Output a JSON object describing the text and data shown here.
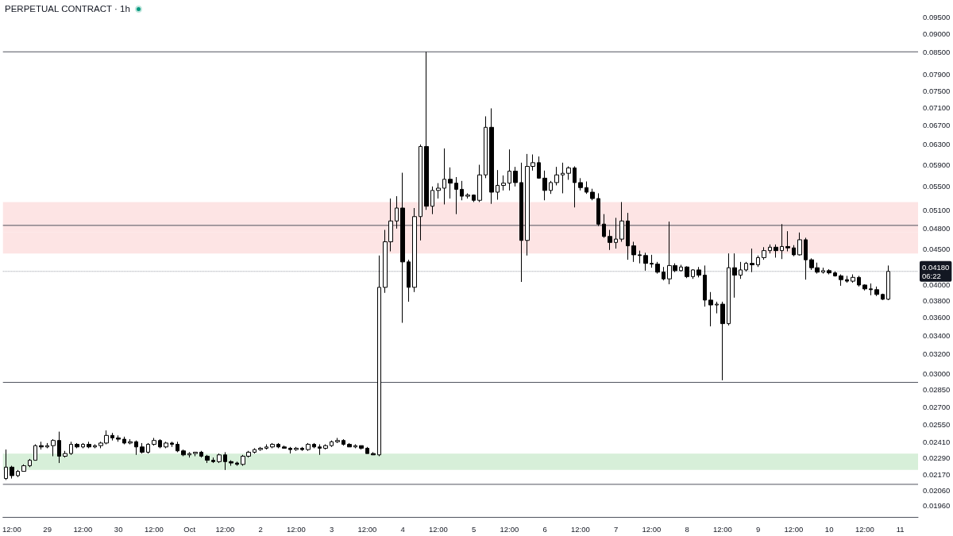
{
  "chart_data": {
    "type": "candlestick",
    "title": "PERPETUAL CONTRACT · 1h",
    "log": true,
    "grid": false,
    "xlim": [
      "--09-28T09:00",
      "--10-11T06:00"
    ],
    "xticks": [
      {
        "value": "--09-28T12:00",
        "label": "12:00"
      },
      {
        "value": "--09-29",
        "label": "29"
      },
      {
        "value": "--09-29T12:00",
        "label": "12:00"
      },
      {
        "value": "--09-30",
        "label": "30"
      },
      {
        "value": "--09-30T12:00",
        "label": "12:00"
      },
      {
        "value": "--10-01",
        "label": "Oct"
      },
      {
        "value": "--10-01T12:00",
        "label": "12:00"
      },
      {
        "value": "--10-02",
        "label": "2"
      },
      {
        "value": "--10-02T12:00",
        "label": "12:00"
      },
      {
        "value": "--10-03",
        "label": "3"
      },
      {
        "value": "--10-03T12:00",
        "label": "12:00"
      },
      {
        "value": "--10-04",
        "label": "4"
      },
      {
        "value": "--10-04T12:00",
        "label": "12:00"
      },
      {
        "value": "--10-05",
        "label": "5"
      },
      {
        "value": "--10-05T12:00",
        "label": "12:00"
      },
      {
        "value": "--10-06",
        "label": "6"
      },
      {
        "value": "--10-06T12:00",
        "label": "12:00"
      },
      {
        "value": "--10-07",
        "label": "7"
      },
      {
        "value": "--10-07T12:00",
        "label": "12:00"
      },
      {
        "value": "--10-08",
        "label": "8"
      },
      {
        "value": "--10-08T12:00",
        "label": "12:00"
      },
      {
        "value": "--10-09",
        "label": "9"
      },
      {
        "value": "--10-09T12:00",
        "label": "12:00"
      },
      {
        "value": "--10-10",
        "label": "10"
      },
      {
        "value": "--10-10T12:00",
        "label": "12:00"
      },
      {
        "value": "--10-11",
        "label": "11"
      }
    ],
    "ylim": [
      0.0189,
      0.1005
    ],
    "yticks": [
      {
        "value": 0.095,
        "label": "0.09500"
      },
      {
        "value": 0.09,
        "label": "0.09000"
      },
      {
        "value": 0.085,
        "label": "0.08500"
      },
      {
        "value": 0.079,
        "label": "0.07900"
      },
      {
        "value": 0.075,
        "label": "0.07500"
      },
      {
        "value": 0.071,
        "label": "0.07100"
      },
      {
        "value": 0.067,
        "label": "0.06700"
      },
      {
        "value": 0.063,
        "label": "0.06300"
      },
      {
        "value": 0.059,
        "label": "0.05900"
      },
      {
        "value": 0.055,
        "label": "0.05500"
      },
      {
        "value": 0.051,
        "label": "0.05100"
      },
      {
        "value": 0.048,
        "label": "0.04800"
      },
      {
        "value": 0.045,
        "label": "0.04500"
      },
      {
        "value": 0.04,
        "label": "0.04000"
      },
      {
        "value": 0.038,
        "label": "0.03800"
      },
      {
        "value": 0.036,
        "label": "0.03600"
      },
      {
        "value": 0.034,
        "label": "0.03400"
      },
      {
        "value": 0.032,
        "label": "0.03200"
      },
      {
        "value": 0.03,
        "label": "0.03000"
      },
      {
        "value": 0.0285,
        "label": "0.02850"
      },
      {
        "value": 0.027,
        "label": "0.02700"
      },
      {
        "value": 0.0255,
        "label": "0.02550"
      },
      {
        "value": 0.0241,
        "label": "0.02410"
      },
      {
        "value": 0.0229,
        "label": "0.02290"
      },
      {
        "value": 0.0217,
        "label": "0.02170"
      },
      {
        "value": 0.0206,
        "label": "0.02060"
      },
      {
        "value": 0.0196,
        "label": "0.01960"
      }
    ],
    "bands": [
      {
        "axis": "y",
        "from": 0.022,
        "to": 0.0232,
        "color": "#d7efd9"
      },
      {
        "axis": "y",
        "from": 0.0474,
        "to": 0.0523,
        "color": "#fde4e4"
      },
      {
        "axis": "y",
        "from": 0.0443,
        "to": 0.0474,
        "color": "#fde4e4"
      }
    ],
    "ref_lines": [
      {
        "axis": "y",
        "value": 0.085,
        "color": "#50535e"
      },
      {
        "axis": "y",
        "value": 0.0485,
        "color": "#50535e"
      },
      {
        "axis": "y",
        "value": 0.0292,
        "color": "#50535e"
      },
      {
        "axis": "y",
        "value": 0.021,
        "color": "#50535e"
      },
      {
        "axis": "y",
        "value": 0.0418,
        "label": "0.04180\n06:22",
        "color": "#9598a1",
        "line_style": "dotted"
      }
    ],
    "x": [
      "--09-28T10:00",
      "--09-28T12:00",
      "--09-28T14:00",
      "--09-28T16:00",
      "--09-28T18:00",
      "--09-28T20:00",
      "--09-28T22:00",
      "--09-29T00:00",
      "--09-29T02:00",
      "--09-29T04:00",
      "--09-29T06:00",
      "--09-29T08:00",
      "--09-29T10:00",
      "--09-29T12:00",
      "--09-29T14:00",
      "--09-29T16:00",
      "--09-29T18:00",
      "--09-29T20:00",
      "--09-29T22:00",
      "--09-30T00:00",
      "--09-30T02:00",
      "--09-30T04:00",
      "--09-30T06:00",
      "--09-30T08:00",
      "--09-30T10:00",
      "--09-30T12:00",
      "--09-30T14:00",
      "--09-30T16:00",
      "--09-30T18:00",
      "--09-30T20:00",
      "--09-30T22:00",
      "--10-01T00:00",
      "--10-01T02:00",
      "--10-01T04:00",
      "--10-01T06:00",
      "--10-01T08:00",
      "--10-01T10:00",
      "--10-01T12:00",
      "--10-01T14:00",
      "--10-01T16:00",
      "--10-01T18:00",
      "--10-01T20:00",
      "--10-01T22:00",
      "--10-02T00:00",
      "--10-02T02:00",
      "--10-02T04:00",
      "--10-02T06:00",
      "--10-02T08:00",
      "--10-02T10:00",
      "--10-02T12:00",
      "--10-02T14:00",
      "--10-02T16:00",
      "--10-02T18:00",
      "--10-02T20:00",
      "--10-02T22:00",
      "--10-03T00:00",
      "--10-03T02:00",
      "--10-03T04:00",
      "--10-03T06:00",
      "--10-03T08:00",
      "--10-03T10:00",
      "--10-03T12:00",
      "--10-03T14:00",
      "--10-03T16:00",
      "--10-03T18:00",
      "--10-03T20:00",
      "--10-03T22:00",
      "--10-04T00:00",
      "--10-04T02:00",
      "--10-04T04:00",
      "--10-04T06:00",
      "--10-04T08:00",
      "--10-04T10:00",
      "--10-04T12:00",
      "--10-04T14:00",
      "--10-04T16:00",
      "--10-04T18:00",
      "--10-04T20:00",
      "--10-04T22:00",
      "--10-05T00:00",
      "--10-05T02:00",
      "--10-05T04:00",
      "--10-05T06:00",
      "--10-05T08:00",
      "--10-05T10:00",
      "--10-05T12:00",
      "--10-05T14:00",
      "--10-05T16:00",
      "--10-05T18:00",
      "--10-05T20:00",
      "--10-05T22:00",
      "--10-06T00:00",
      "--10-06T02:00",
      "--10-06T04:00",
      "--10-06T06:00",
      "--10-06T08:00",
      "--10-06T10:00",
      "--10-06T12:00",
      "--10-06T14:00",
      "--10-06T16:00",
      "--10-06T18:00",
      "--10-06T20:00",
      "--10-06T22:00",
      "--10-07T00:00",
      "--10-07T02:00",
      "--10-07T04:00",
      "--10-07T06:00",
      "--10-07T08:00",
      "--10-07T10:00",
      "--10-07T12:00",
      "--10-07T14:00",
      "--10-07T16:00",
      "--10-07T18:00",
      "--10-07T20:00",
      "--10-07T22:00",
      "--10-08T00:00",
      "--10-08T02:00",
      "--10-08T04:00",
      "--10-08T06:00",
      "--10-08T08:00",
      "--10-08T10:00",
      "--10-08T12:00",
      "--10-08T14:00",
      "--10-08T16:00",
      "--10-08T18:00",
      "--10-08T20:00",
      "--10-08T22:00",
      "--10-09T00:00",
      "--10-09T02:00",
      "--10-09T04:00",
      "--10-09T06:00",
      "--10-09T08:00",
      "--10-09T10:00",
      "--10-09T12:00",
      "--10-09T14:00",
      "--10-09T16:00",
      "--10-09T18:00",
      "--10-09T20:00",
      "--10-09T22:00",
      "--10-10T00:00",
      "--10-10T02:00",
      "--10-10T04:00",
      "--10-10T06:00",
      "--10-10T08:00",
      "--10-10T10:00",
      "--10-10T12:00",
      "--10-10T14:00",
      "--10-10T16:00",
      "--10-10T18:00",
      "--10-10T20:00"
    ],
    "series": [
      {
        "color": "#000000",
        "ohlc": [
          [
            0.0214,
            0.0235,
            0.0213,
            0.0222
          ],
          [
            0.0222,
            0.0223,
            0.0214,
            0.0216
          ],
          [
            0.0216,
            0.022,
            0.0215,
            0.0219
          ],
          [
            0.0219,
            0.0224,
            0.0219,
            0.0223
          ],
          [
            0.0223,
            0.0228,
            0.0222,
            0.0227
          ],
          [
            0.0227,
            0.0239,
            0.0227,
            0.0238
          ],
          [
            0.0238,
            0.0241,
            0.0235,
            0.0237
          ],
          [
            0.0237,
            0.024,
            0.0236,
            0.0238
          ],
          [
            0.0238,
            0.0243,
            0.023,
            0.0242
          ],
          [
            0.0242,
            0.0249,
            0.0225,
            0.023
          ],
          [
            0.023,
            0.0234,
            0.0229,
            0.0232
          ],
          [
            0.0232,
            0.0241,
            0.0231,
            0.0239
          ],
          [
            0.0239,
            0.024,
            0.0236,
            0.0237
          ],
          [
            0.0237,
            0.024,
            0.0236,
            0.0239
          ],
          [
            0.0239,
            0.0241,
            0.0236,
            0.0237
          ],
          [
            0.0237,
            0.0239,
            0.0236,
            0.0238
          ],
          [
            0.0238,
            0.0241,
            0.0236,
            0.024
          ],
          [
            0.024,
            0.025,
            0.0239,
            0.0246
          ],
          [
            0.0246,
            0.0248,
            0.0242,
            0.0244
          ],
          [
            0.0244,
            0.0246,
            0.0241,
            0.0243
          ],
          [
            0.0243,
            0.0245,
            0.0239,
            0.024
          ],
          [
            0.024,
            0.0243,
            0.0239,
            0.0241
          ],
          [
            0.0241,
            0.0242,
            0.0231,
            0.0237
          ],
          [
            0.0237,
            0.024,
            0.0232,
            0.0233
          ],
          [
            0.0233,
            0.024,
            0.0232,
            0.0239
          ],
          [
            0.0239,
            0.0244,
            0.0238,
            0.0242
          ],
          [
            0.0242,
            0.0243,
            0.0236,
            0.0237
          ],
          [
            0.0237,
            0.0241,
            0.0236,
            0.024
          ],
          [
            0.024,
            0.0241,
            0.0237,
            0.0239
          ],
          [
            0.0239,
            0.0241,
            0.0233,
            0.0234
          ],
          [
            0.0234,
            0.0235,
            0.023,
            0.0231
          ],
          [
            0.0231,
            0.0233,
            0.0229,
            0.0232
          ],
          [
            0.0232,
            0.0233,
            0.023,
            0.0233
          ],
          [
            0.0233,
            0.0234,
            0.0229,
            0.023
          ],
          [
            0.023,
            0.0231,
            0.0225,
            0.0227
          ],
          [
            0.0227,
            0.0229,
            0.0225,
            0.0226
          ],
          [
            0.0226,
            0.0232,
            0.0225,
            0.0231
          ],
          [
            0.0231,
            0.0233,
            0.022,
            0.0226
          ],
          [
            0.0226,
            0.0227,
            0.0223,
            0.0225
          ],
          [
            0.0225,
            0.0226,
            0.0223,
            0.0224
          ],
          [
            0.0224,
            0.0231,
            0.0223,
            0.023
          ],
          [
            0.023,
            0.0234,
            0.0229,
            0.0233
          ],
          [
            0.0233,
            0.0236,
            0.0232,
            0.0235
          ],
          [
            0.0235,
            0.0237,
            0.0234,
            0.0236
          ],
          [
            0.0236,
            0.0239,
            0.0235,
            0.0237
          ],
          [
            0.0237,
            0.024,
            0.0236,
            0.0239
          ],
          [
            0.0239,
            0.024,
            0.0236,
            0.0237
          ],
          [
            0.0237,
            0.0238,
            0.0236,
            0.0236
          ],
          [
            0.0236,
            0.0237,
            0.0232,
            0.0235
          ],
          [
            0.0235,
            0.0237,
            0.0234,
            0.0236
          ],
          [
            0.0236,
            0.0237,
            0.0234,
            0.0235
          ],
          [
            0.0235,
            0.024,
            0.0234,
            0.0239
          ],
          [
            0.0239,
            0.024,
            0.0236,
            0.0237
          ],
          [
            0.0237,
            0.0239,
            0.0231,
            0.0236
          ],
          [
            0.0236,
            0.0239,
            0.0235,
            0.0238
          ],
          [
            0.0238,
            0.0242,
            0.0237,
            0.0241
          ],
          [
            0.0241,
            0.0244,
            0.024,
            0.0242
          ],
          [
            0.0242,
            0.0243,
            0.0238,
            0.0239
          ],
          [
            0.0239,
            0.024,
            0.0237,
            0.0237
          ],
          [
            0.0237,
            0.0239,
            0.0236,
            0.0238
          ],
          [
            0.0238,
            0.0238,
            0.0235,
            0.0236
          ],
          [
            0.0236,
            0.0237,
            0.0232,
            0.0232
          ],
          [
            0.0232,
            0.0233,
            0.0231,
            0.0231
          ],
          [
            0.0231,
            0.044,
            0.023,
            0.0397
          ],
          [
            0.0397,
            0.0478,
            0.039,
            0.046
          ],
          [
            0.046,
            0.0529,
            0.0446,
            0.0492
          ],
          [
            0.0492,
            0.0533,
            0.048,
            0.0513
          ],
          [
            0.0513,
            0.0575,
            0.0354,
            0.0431
          ],
          [
            0.0431,
            0.0434,
            0.0379,
            0.0397
          ],
          [
            0.0397,
            0.0513,
            0.0391,
            0.0499
          ],
          [
            0.0499,
            0.063,
            0.0462,
            0.0626
          ],
          [
            0.0626,
            0.085,
            0.051,
            0.0516
          ],
          [
            0.0516,
            0.055,
            0.0503,
            0.0543
          ],
          [
            0.0543,
            0.0556,
            0.0529,
            0.0547
          ],
          [
            0.0547,
            0.0622,
            0.0519,
            0.0563
          ],
          [
            0.0563,
            0.0585,
            0.0529,
            0.0556
          ],
          [
            0.0556,
            0.0567,
            0.0503,
            0.0545
          ],
          [
            0.0545,
            0.056,
            0.0526,
            0.0533
          ],
          [
            0.0533,
            0.0538,
            0.0529,
            0.0535
          ],
          [
            0.0535,
            0.0536,
            0.0523,
            0.0526
          ],
          [
            0.0526,
            0.059,
            0.0523,
            0.0571
          ],
          [
            0.0571,
            0.069,
            0.0565,
            0.0666
          ],
          [
            0.0666,
            0.0708,
            0.052,
            0.054
          ],
          [
            0.054,
            0.058,
            0.0527,
            0.0552
          ],
          [
            0.0552,
            0.057,
            0.0543,
            0.0556
          ],
          [
            0.0556,
            0.062,
            0.0543,
            0.0578
          ],
          [
            0.0578,
            0.0586,
            0.055,
            0.0557
          ],
          [
            0.0557,
            0.0594,
            0.0404,
            0.0462
          ],
          [
            0.0462,
            0.0611,
            0.044,
            0.0587
          ],
          [
            0.0587,
            0.061,
            0.0579,
            0.0594
          ],
          [
            0.0594,
            0.0606,
            0.0564,
            0.0565
          ],
          [
            0.0565,
            0.0579,
            0.0526,
            0.0543
          ],
          [
            0.0543,
            0.056,
            0.0537,
            0.0557
          ],
          [
            0.0557,
            0.0586,
            0.0552,
            0.0571
          ],
          [
            0.0571,
            0.0594,
            0.0538,
            0.0574
          ],
          [
            0.0574,
            0.0587,
            0.0562,
            0.0584
          ],
          [
            0.0584,
            0.0587,
            0.0514,
            0.0557
          ],
          [
            0.0557,
            0.0565,
            0.0543,
            0.0548
          ],
          [
            0.0548,
            0.0559,
            0.0537,
            0.054
          ],
          [
            0.054,
            0.0546,
            0.0526,
            0.0529
          ],
          [
            0.0529,
            0.0538,
            0.0484,
            0.0487
          ],
          [
            0.0487,
            0.0503,
            0.0466,
            0.0468
          ],
          [
            0.0468,
            0.0478,
            0.0448,
            0.0459
          ],
          [
            0.0459,
            0.0497,
            0.045,
            0.0464
          ],
          [
            0.0464,
            0.0523,
            0.046,
            0.0492
          ],
          [
            0.0492,
            0.0505,
            0.0434,
            0.0454
          ],
          [
            0.0454,
            0.046,
            0.0431,
            0.0441
          ],
          [
            0.0441,
            0.0447,
            0.0429,
            0.044
          ],
          [
            0.044,
            0.0444,
            0.0419,
            0.0429
          ],
          [
            0.0429,
            0.0441,
            0.0423,
            0.0428
          ],
          [
            0.0428,
            0.0431,
            0.0415,
            0.0417
          ],
          [
            0.0417,
            0.0424,
            0.0406,
            0.0408
          ],
          [
            0.0408,
            0.0491,
            0.0401,
            0.0426
          ],
          [
            0.0426,
            0.0429,
            0.0417,
            0.0419
          ],
          [
            0.0419,
            0.0427,
            0.0418,
            0.0424
          ],
          [
            0.0424,
            0.0425,
            0.0409,
            0.0411
          ],
          [
            0.0411,
            0.0421,
            0.0408,
            0.042
          ],
          [
            0.042,
            0.0424,
            0.041,
            0.0413
          ],
          [
            0.0413,
            0.0426,
            0.0373,
            0.0381
          ],
          [
            0.0381,
            0.0391,
            0.035,
            0.0375
          ],
          [
            0.0375,
            0.0379,
            0.0365,
            0.0376
          ],
          [
            0.0376,
            0.0379,
            0.0294,
            0.0353
          ],
          [
            0.0353,
            0.0443,
            0.0351,
            0.0423
          ],
          [
            0.0423,
            0.0443,
            0.0384,
            0.0413
          ],
          [
            0.0413,
            0.0431,
            0.0408,
            0.042
          ],
          [
            0.042,
            0.0431,
            0.0418,
            0.0429
          ],
          [
            0.0429,
            0.045,
            0.0417,
            0.0427
          ],
          [
            0.0427,
            0.044,
            0.0424,
            0.0437
          ],
          [
            0.0437,
            0.0452,
            0.0434,
            0.0447
          ],
          [
            0.0447,
            0.0456,
            0.0443,
            0.0452
          ],
          [
            0.0452,
            0.0456,
            0.0437,
            0.0447
          ],
          [
            0.0447,
            0.0487,
            0.0435,
            0.0453
          ],
          [
            0.0453,
            0.0476,
            0.0446,
            0.0451
          ],
          [
            0.0451,
            0.0455,
            0.0439,
            0.0441
          ],
          [
            0.0441,
            0.0474,
            0.044,
            0.0463
          ],
          [
            0.0463,
            0.0466,
            0.0407,
            0.0434
          ],
          [
            0.0434,
            0.0436,
            0.042,
            0.0423
          ],
          [
            0.0423,
            0.043,
            0.0415,
            0.0417
          ],
          [
            0.0417,
            0.0423,
            0.0415,
            0.0419
          ],
          [
            0.0419,
            0.0421,
            0.0414,
            0.0416
          ],
          [
            0.0416,
            0.0418,
            0.0411,
            0.0412
          ],
          [
            0.0412,
            0.0414,
            0.0399,
            0.0407
          ],
          [
            0.0407,
            0.0412,
            0.0403,
            0.0405
          ],
          [
            0.0405,
            0.0414,
            0.0403,
            0.041
          ],
          [
            0.041,
            0.0412,
            0.0398,
            0.04
          ],
          [
            0.04,
            0.0401,
            0.0393,
            0.0395
          ],
          [
            0.0395,
            0.0402,
            0.0387,
            0.0394
          ],
          [
            0.0394,
            0.0398,
            0.0386,
            0.0388
          ],
          [
            0.0388,
            0.0389,
            0.0381,
            0.0382
          ],
          [
            0.0382,
            0.0426,
            0.0381,
            0.0418
          ]
        ]
      }
    ]
  }
}
